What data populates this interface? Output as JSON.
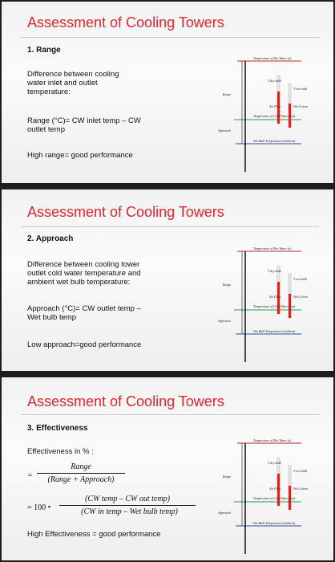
{
  "slides": [
    {
      "title": "Assessment of Cooling Towers",
      "heading": "1. Range",
      "para1": [
        "Difference between cooling",
        "water inlet and outlet",
        "temperature:"
      ],
      "formula": [
        "Range (°C)= CW inlet temp – CW",
        "outlet temp"
      ],
      "conclusion": "High range= good performance"
    },
    {
      "title": "Assessment of Cooling Towers",
      "heading": "2. Approach",
      "para1": [
        "Difference between cooling tower",
        "outlet cold water temperature and",
        "ambient wet bulb temperature:"
      ],
      "formula": [
        "Approach (°C)= CW outlet temp –",
        "Wet bulb temp"
      ],
      "conclusion": "Low approach=good performance"
    },
    {
      "title": "Assessment of Cooling Towers",
      "heading": "3. Effectiveness",
      "intro": "Effectiveness in % :",
      "frac1_num": "Range",
      "frac1_den": "(Range + Approach)",
      "frac2_prefix": "= 100 •",
      "frac2_num": "(CW temp – CW out temp)",
      "frac2_den": "(CW in temp – Wet bulb temp)",
      "conclusion": "High Effectiveness = good performance"
    }
  ],
  "diagram": {
    "hot_water": "Temperature of Hot Water (a)",
    "cold_water": "Temperature of Cold Water (out)",
    "wet_bulb": "Wet Bulb Temperature (ambient)",
    "range": "Range",
    "approach": "Approach",
    "dry_bulb": "T dry bulb",
    "wet_bulb_t": "T wet bulb",
    "air_flow": "Air Flow",
    "wet_cotton": "Wet Cotton"
  }
}
